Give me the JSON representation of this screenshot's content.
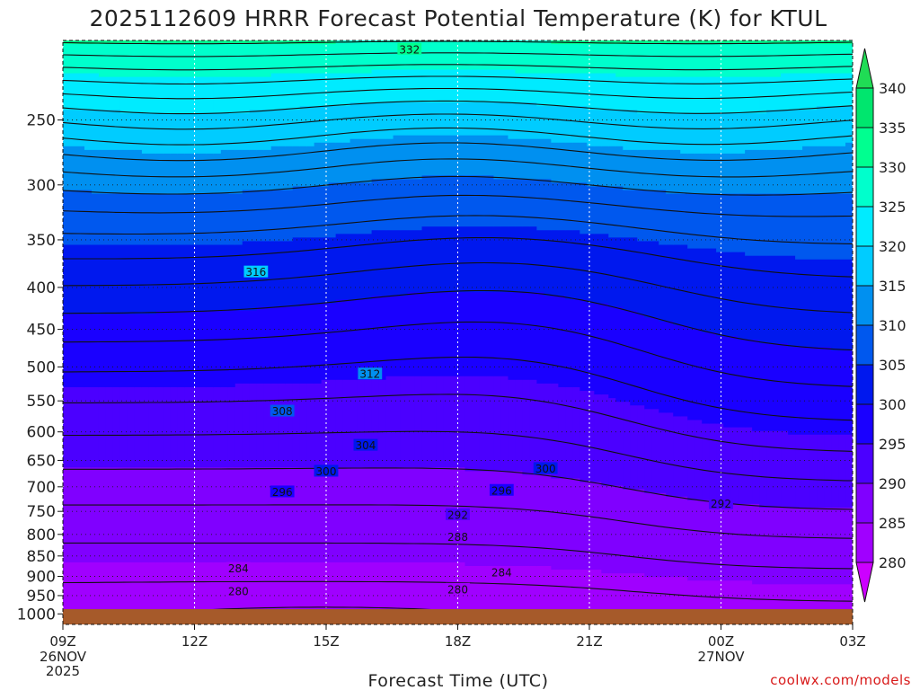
{
  "chart_data": {
    "type": "time-height contour",
    "title": "2025112609 HRRR Forecast Potential Temperature (K) for KTUL",
    "xlabel": "Forecast Time (UTC)",
    "ylabel": "",
    "x_ticks": [
      {
        "label": "09Z",
        "hour": 0,
        "sub": [
          "26NOV",
          "2025"
        ]
      },
      {
        "label": "12Z",
        "hour": 3,
        "sub": []
      },
      {
        "label": "15Z",
        "hour": 6,
        "sub": []
      },
      {
        "label": "18Z",
        "hour": 9,
        "sub": []
      },
      {
        "label": "21Z",
        "hour": 12,
        "sub": []
      },
      {
        "label": "00Z",
        "hour": 15,
        "sub": [
          "27NOV"
        ]
      },
      {
        "label": "03Z",
        "hour": 18,
        "sub": []
      }
    ],
    "x_range_hours": [
      0,
      18
    ],
    "y_axis": "pressure (hPa), log scale",
    "y_range": [
      200,
      1030
    ],
    "y_ticks": [
      250,
      300,
      350,
      400,
      450,
      500,
      550,
      600,
      650,
      700,
      750,
      800,
      850,
      900,
      950,
      1000
    ],
    "colorbar": {
      "levels": [
        280,
        285,
        290,
        295,
        300,
        305,
        310,
        315,
        320,
        325,
        330,
        335,
        340
      ],
      "colors": [
        "#cc00ff",
        "#a000ff",
        "#8000ff",
        "#4b00ff",
        "#1a00ff",
        "#0018ee",
        "#0058ee",
        "#0090f0",
        "#00ccff",
        "#00ebff",
        "#00ffcc",
        "#00ff90",
        "#00e66e",
        "#20dc55",
        "#90ff00",
        "#c8ff00"
      ]
    },
    "contour_interval_K": 2,
    "contour_labels": [
      {
        "value": 332,
        "hour": 7.9,
        "p": 205
      },
      {
        "value": 316,
        "hour": 4.4,
        "p": 383
      },
      {
        "value": 312,
        "hour": 7.0,
        "p": 510
      },
      {
        "value": 308,
        "hour": 5.0,
        "p": 566
      },
      {
        "value": 304,
        "hour": 6.9,
        "p": 623
      },
      {
        "value": 300,
        "hour": 6.0,
        "p": 670
      },
      {
        "value": 300,
        "hour": 11.0,
        "p": 665
      },
      {
        "value": 296,
        "hour": 5.0,
        "p": 710
      },
      {
        "value": 296,
        "hour": 10.0,
        "p": 707
      },
      {
        "value": 292,
        "hour": 9.0,
        "p": 757
      },
      {
        "value": 292,
        "hour": 15.0,
        "p": 734
      },
      {
        "value": 288,
        "hour": 9.0,
        "p": 806
      },
      {
        "value": 284,
        "hour": 4.0,
        "p": 880
      },
      {
        "value": 284,
        "hour": 10.0,
        "p": 890
      },
      {
        "value": 280,
        "hour": 4.0,
        "p": 938
      },
      {
        "value": 280,
        "hour": 9.0,
        "p": 933
      }
    ],
    "terrain_color": "#a65a2a",
    "surface_pressure_hPa": 1000
  },
  "credit": {
    "text": "coolwx.com/models",
    "color": "#d81a1a"
  }
}
